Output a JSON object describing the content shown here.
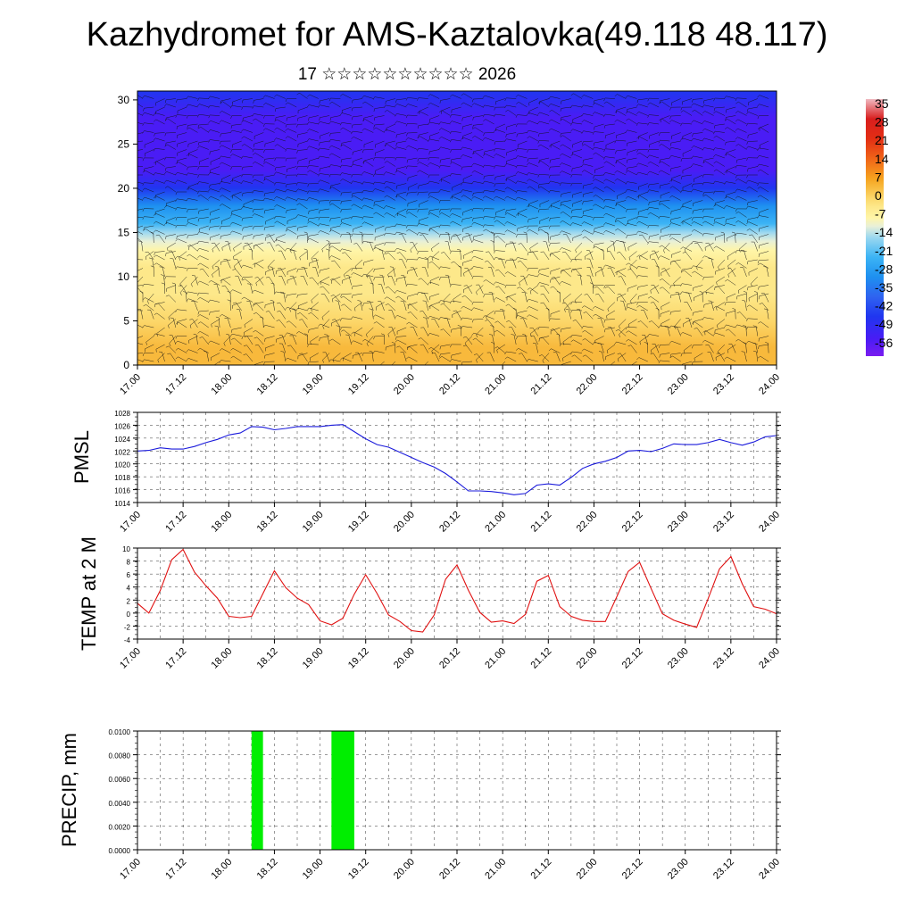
{
  "title": "Kazhydromet for AMS-Kaztalovka(49.118 48.117)",
  "subtitle": "17 ☆☆☆☆☆☆☆☆☆☆ 2026",
  "colors": {
    "pmsl_line": "#1a1adb",
    "temp_line": "#e01010",
    "precip_bar": "#00ee00",
    "grid": "#000000"
  },
  "chart_data": [
    {
      "id": "wind_profile",
      "type": "heatmap",
      "title": "",
      "x_ticks": [
        "17.00",
        "17.12",
        "18.00",
        "18.12",
        "19.00",
        "19.12",
        "20.00",
        "20.12",
        "21.00",
        "21.12",
        "22.00",
        "22.12",
        "23.00",
        "23.12",
        "24.00"
      ],
      "y_ticks": [
        0,
        5,
        10,
        15,
        20,
        25,
        30
      ],
      "ylim": [
        0,
        31
      ],
      "colorbar_labels": [
        "35",
        "28",
        "21",
        "14",
        "7",
        "0",
        "-7",
        "-14",
        "-21",
        "-28",
        "-35",
        "-42",
        "-49",
        "-56"
      ],
      "colorbar_range": [
        -56,
        35
      ],
      "temperature_by_height": [
        [
          0,
          4
        ],
        [
          2,
          2
        ],
        [
          5,
          0
        ],
        [
          8,
          -3
        ],
        [
          11,
          -6
        ],
        [
          13,
          -9
        ],
        [
          14,
          -12
        ],
        [
          15,
          -16
        ],
        [
          16,
          -22
        ],
        [
          18,
          -32
        ],
        [
          20,
          -42
        ],
        [
          22,
          -50
        ],
        [
          24,
          -55
        ],
        [
          26,
          -54
        ],
        [
          28,
          -50
        ],
        [
          31,
          -48
        ]
      ]
    },
    {
      "id": "pmsl",
      "type": "line",
      "ylabel": "PMSL",
      "x_ticks": [
        "17.00",
        "17.12",
        "18.00",
        "18.12",
        "19.00",
        "19.12",
        "20.00",
        "20.12",
        "21.00",
        "21.12",
        "22.00",
        "22.12",
        "23.00",
        "23.12",
        "24.00"
      ],
      "y_ticks": [
        1014,
        1016,
        1018,
        1020,
        1022,
        1024,
        1026,
        1028
      ],
      "ylim": [
        1014,
        1028
      ],
      "x": [
        0,
        3,
        6,
        9,
        12,
        15,
        18,
        21,
        24,
        27,
        30,
        33,
        36,
        39,
        42,
        45,
        48,
        51,
        54,
        57,
        60,
        63,
        66,
        69,
        72,
        75,
        78,
        81,
        84,
        87,
        90,
        93,
        96,
        99,
        102,
        105,
        108,
        111,
        114,
        117,
        120,
        123,
        126,
        129,
        132,
        135,
        138,
        141,
        144,
        147,
        150,
        153,
        156,
        159,
        162,
        165,
        168
      ],
      "values": [
        1022.0,
        1022.1,
        1022.5,
        1022.3,
        1022.3,
        1022.7,
        1023.3,
        1023.8,
        1024.5,
        1024.8,
        1025.8,
        1025.7,
        1025.3,
        1025.5,
        1025.8,
        1025.8,
        1025.8,
        1026.0,
        1026.1,
        1025.0,
        1023.9,
        1023.0,
        1022.6,
        1021.8,
        1021.0,
        1020.2,
        1019.5,
        1018.5,
        1017.2,
        1015.8,
        1015.8,
        1015.7,
        1015.5,
        1015.2,
        1015.4,
        1016.7,
        1016.9,
        1016.7,
        1017.9,
        1019.3,
        1020.0,
        1020.4,
        1021.0,
        1022.0,
        1022.1,
        1021.9,
        1022.4,
        1023.1,
        1023.0,
        1023.0,
        1023.3,
        1023.8,
        1023.3,
        1022.9,
        1023.4,
        1024.2,
        1024.4
      ]
    },
    {
      "id": "temp2m",
      "type": "line",
      "ylabel": "TEMP at 2 M",
      "x_ticks": [
        "17.00",
        "17.12",
        "18.00",
        "18.12",
        "19.00",
        "19.12",
        "20.00",
        "20.12",
        "21.00",
        "21.12",
        "22.00",
        "22.12",
        "23.00",
        "23.12",
        "24.00"
      ],
      "y_ticks": [
        -4,
        -2,
        0,
        2,
        4,
        6,
        8,
        10
      ],
      "ylim": [
        -4,
        10
      ],
      "x": [
        0,
        3,
        6,
        9,
        12,
        15,
        18,
        21,
        24,
        27,
        30,
        33,
        36,
        39,
        42,
        45,
        48,
        51,
        54,
        57,
        60,
        63,
        66,
        69,
        72,
        75,
        78,
        81,
        84,
        87,
        90,
        93,
        96,
        99,
        102,
        105,
        108,
        111,
        114,
        117,
        120,
        123,
        126,
        129,
        132,
        135,
        138,
        141,
        144,
        147,
        150,
        153,
        156,
        159,
        162,
        165,
        168
      ],
      "values": [
        1.5,
        0.0,
        3.5,
        8.2,
        9.8,
        6.3,
        4.2,
        2.3,
        -0.5,
        -0.7,
        -0.5,
        3.0,
        6.5,
        3.9,
        2.3,
        1.3,
        -1.2,
        -1.8,
        -0.8,
        2.9,
        5.9,
        3.0,
        -0.3,
        -1.3,
        -2.7,
        -2.9,
        -0.3,
        5.2,
        7.4,
        3.5,
        0.1,
        -1.4,
        -1.2,
        -1.6,
        -0.2,
        4.9,
        5.8,
        1.0,
        -0.5,
        -1.1,
        -1.3,
        -1.3,
        2.5,
        6.4,
        7.8,
        3.8,
        -0.1,
        -1.1,
        -1.7,
        -2.2,
        2.2,
        6.8,
        8.7,
        4.5,
        1.0,
        0.6,
        -0.1
      ]
    },
    {
      "id": "precip",
      "type": "bar",
      "ylabel": "PRECIP, mm",
      "x_ticks": [
        "17.00",
        "17.12",
        "18.00",
        "18.12",
        "19.00",
        "19.12",
        "20.00",
        "20.12",
        "21.00",
        "21.12",
        "22.00",
        "22.12",
        "23.00",
        "23.12",
        "24.00"
      ],
      "y_ticks": [
        "0.0000",
        "0.0020",
        "0.0040",
        "0.0060",
        "0.0080",
        "0.0100"
      ],
      "ylim": [
        0,
        0.01
      ],
      "bars": [
        {
          "x_start": 30,
          "x_end": 33,
          "value": 0.01
        },
        {
          "x_start": 51,
          "x_end": 57,
          "value": 0.01
        }
      ]
    }
  ]
}
